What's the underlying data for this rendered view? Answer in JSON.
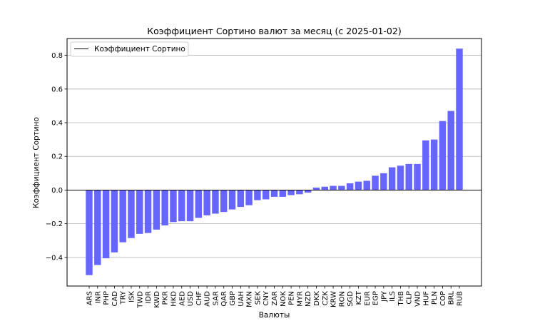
{
  "chart_data": {
    "type": "bar",
    "title": "Коэффициент Сортино валют за месяц (с 2025-01-02)",
    "xlabel": "Валюты",
    "ylabel": "Коэффициент Сортино",
    "legend": {
      "label": "Коэффициент Сортино",
      "placement": "top-left"
    },
    "grid": "y",
    "ylim": [
      -0.57,
      0.9
    ],
    "yticks": [
      -0.4,
      -0.2,
      0.0,
      0.2,
      0.4,
      0.6,
      0.8
    ],
    "ytick_labels": [
      "−0.4",
      "−0.2",
      "0.0",
      "0.2",
      "0.4",
      "0.6",
      "0.8"
    ],
    "bar_color": "#6666ff",
    "categories": [
      "ARS",
      "INR",
      "PHP",
      "CAD",
      "TRY",
      "ISK",
      "TWD",
      "IDR",
      "KWD",
      "PKR",
      "HKD",
      "AED",
      "USD",
      "CHF",
      "AUD",
      "SAR",
      "QAR",
      "GBP",
      "UAH",
      "MXN",
      "SEK",
      "CNY",
      "ZAR",
      "NOK",
      "PEN",
      "MYR",
      "NZD",
      "DKK",
      "CZK",
      "KRW",
      "RON",
      "SGD",
      "KZT",
      "EUR",
      "EGP",
      "JPY",
      "ILS",
      "THB",
      "CLP",
      "VND",
      "HUF",
      "PLN",
      "COP",
      "BRL",
      "RUB"
    ],
    "values": [
      -0.505,
      -0.445,
      -0.405,
      -0.37,
      -0.31,
      -0.285,
      -0.26,
      -0.255,
      -0.235,
      -0.21,
      -0.19,
      -0.185,
      -0.185,
      -0.165,
      -0.15,
      -0.14,
      -0.13,
      -0.115,
      -0.1,
      -0.09,
      -0.06,
      -0.055,
      -0.04,
      -0.04,
      -0.03,
      -0.025,
      -0.015,
      0.015,
      0.02,
      0.025,
      0.025,
      0.04,
      0.05,
      0.055,
      0.085,
      0.1,
      0.135,
      0.145,
      0.155,
      0.155,
      0.295,
      0.3,
      0.41,
      0.47,
      0.84
    ]
  }
}
